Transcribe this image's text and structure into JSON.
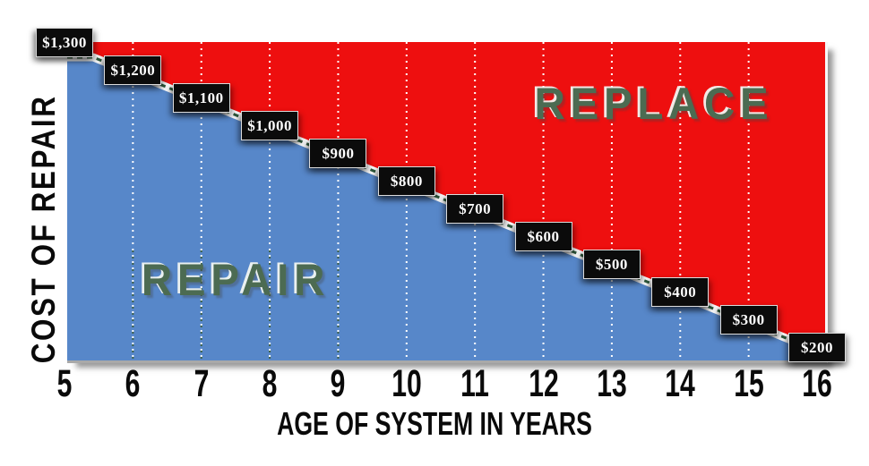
{
  "chart_data": {
    "type": "area",
    "subtype": "step-boundary",
    "x_label": "AGE OF SYSTEM IN YEARS",
    "y_label": "COST OF REPAIR",
    "x_ticks": [
      "5",
      "6",
      "7",
      "8",
      "9",
      "10",
      "11",
      "12",
      "13",
      "14",
      "15",
      "16"
    ],
    "years": [
      5,
      6,
      7,
      8,
      9,
      10,
      11,
      12,
      13,
      14,
      15,
      16
    ],
    "cost_values": [
      1300,
      1200,
      1100,
      1000,
      900,
      800,
      700,
      600,
      500,
      400,
      300,
      200
    ],
    "cost_labels": [
      "$1,300",
      "$1,200",
      "$1,100",
      "$1,000",
      "$900",
      "$800",
      "$700",
      "$600",
      "$500",
      "$400",
      "$300",
      "$200"
    ],
    "xlim": [
      5,
      16
    ],
    "grid": "vertical-dotted-years-6-to-15",
    "legend": "none",
    "zones": {
      "lower": "REPAIR",
      "upper": "REPLACE"
    },
    "colors": {
      "repair_zone_fill": "#5787c9",
      "replace_zone_fill": "#ee0f0f",
      "zone_text": "#4c6b52",
      "label_box_bg": "#0b0b0b",
      "label_box_text": "#ffffff",
      "trend_line_dash": "#2f5b3e",
      "trend_line_outline": "#ffffff",
      "gridline_light": "#ffffff",
      "gridline_dark": "#3e6147",
      "axis_text": "#0a0a0a"
    }
  }
}
